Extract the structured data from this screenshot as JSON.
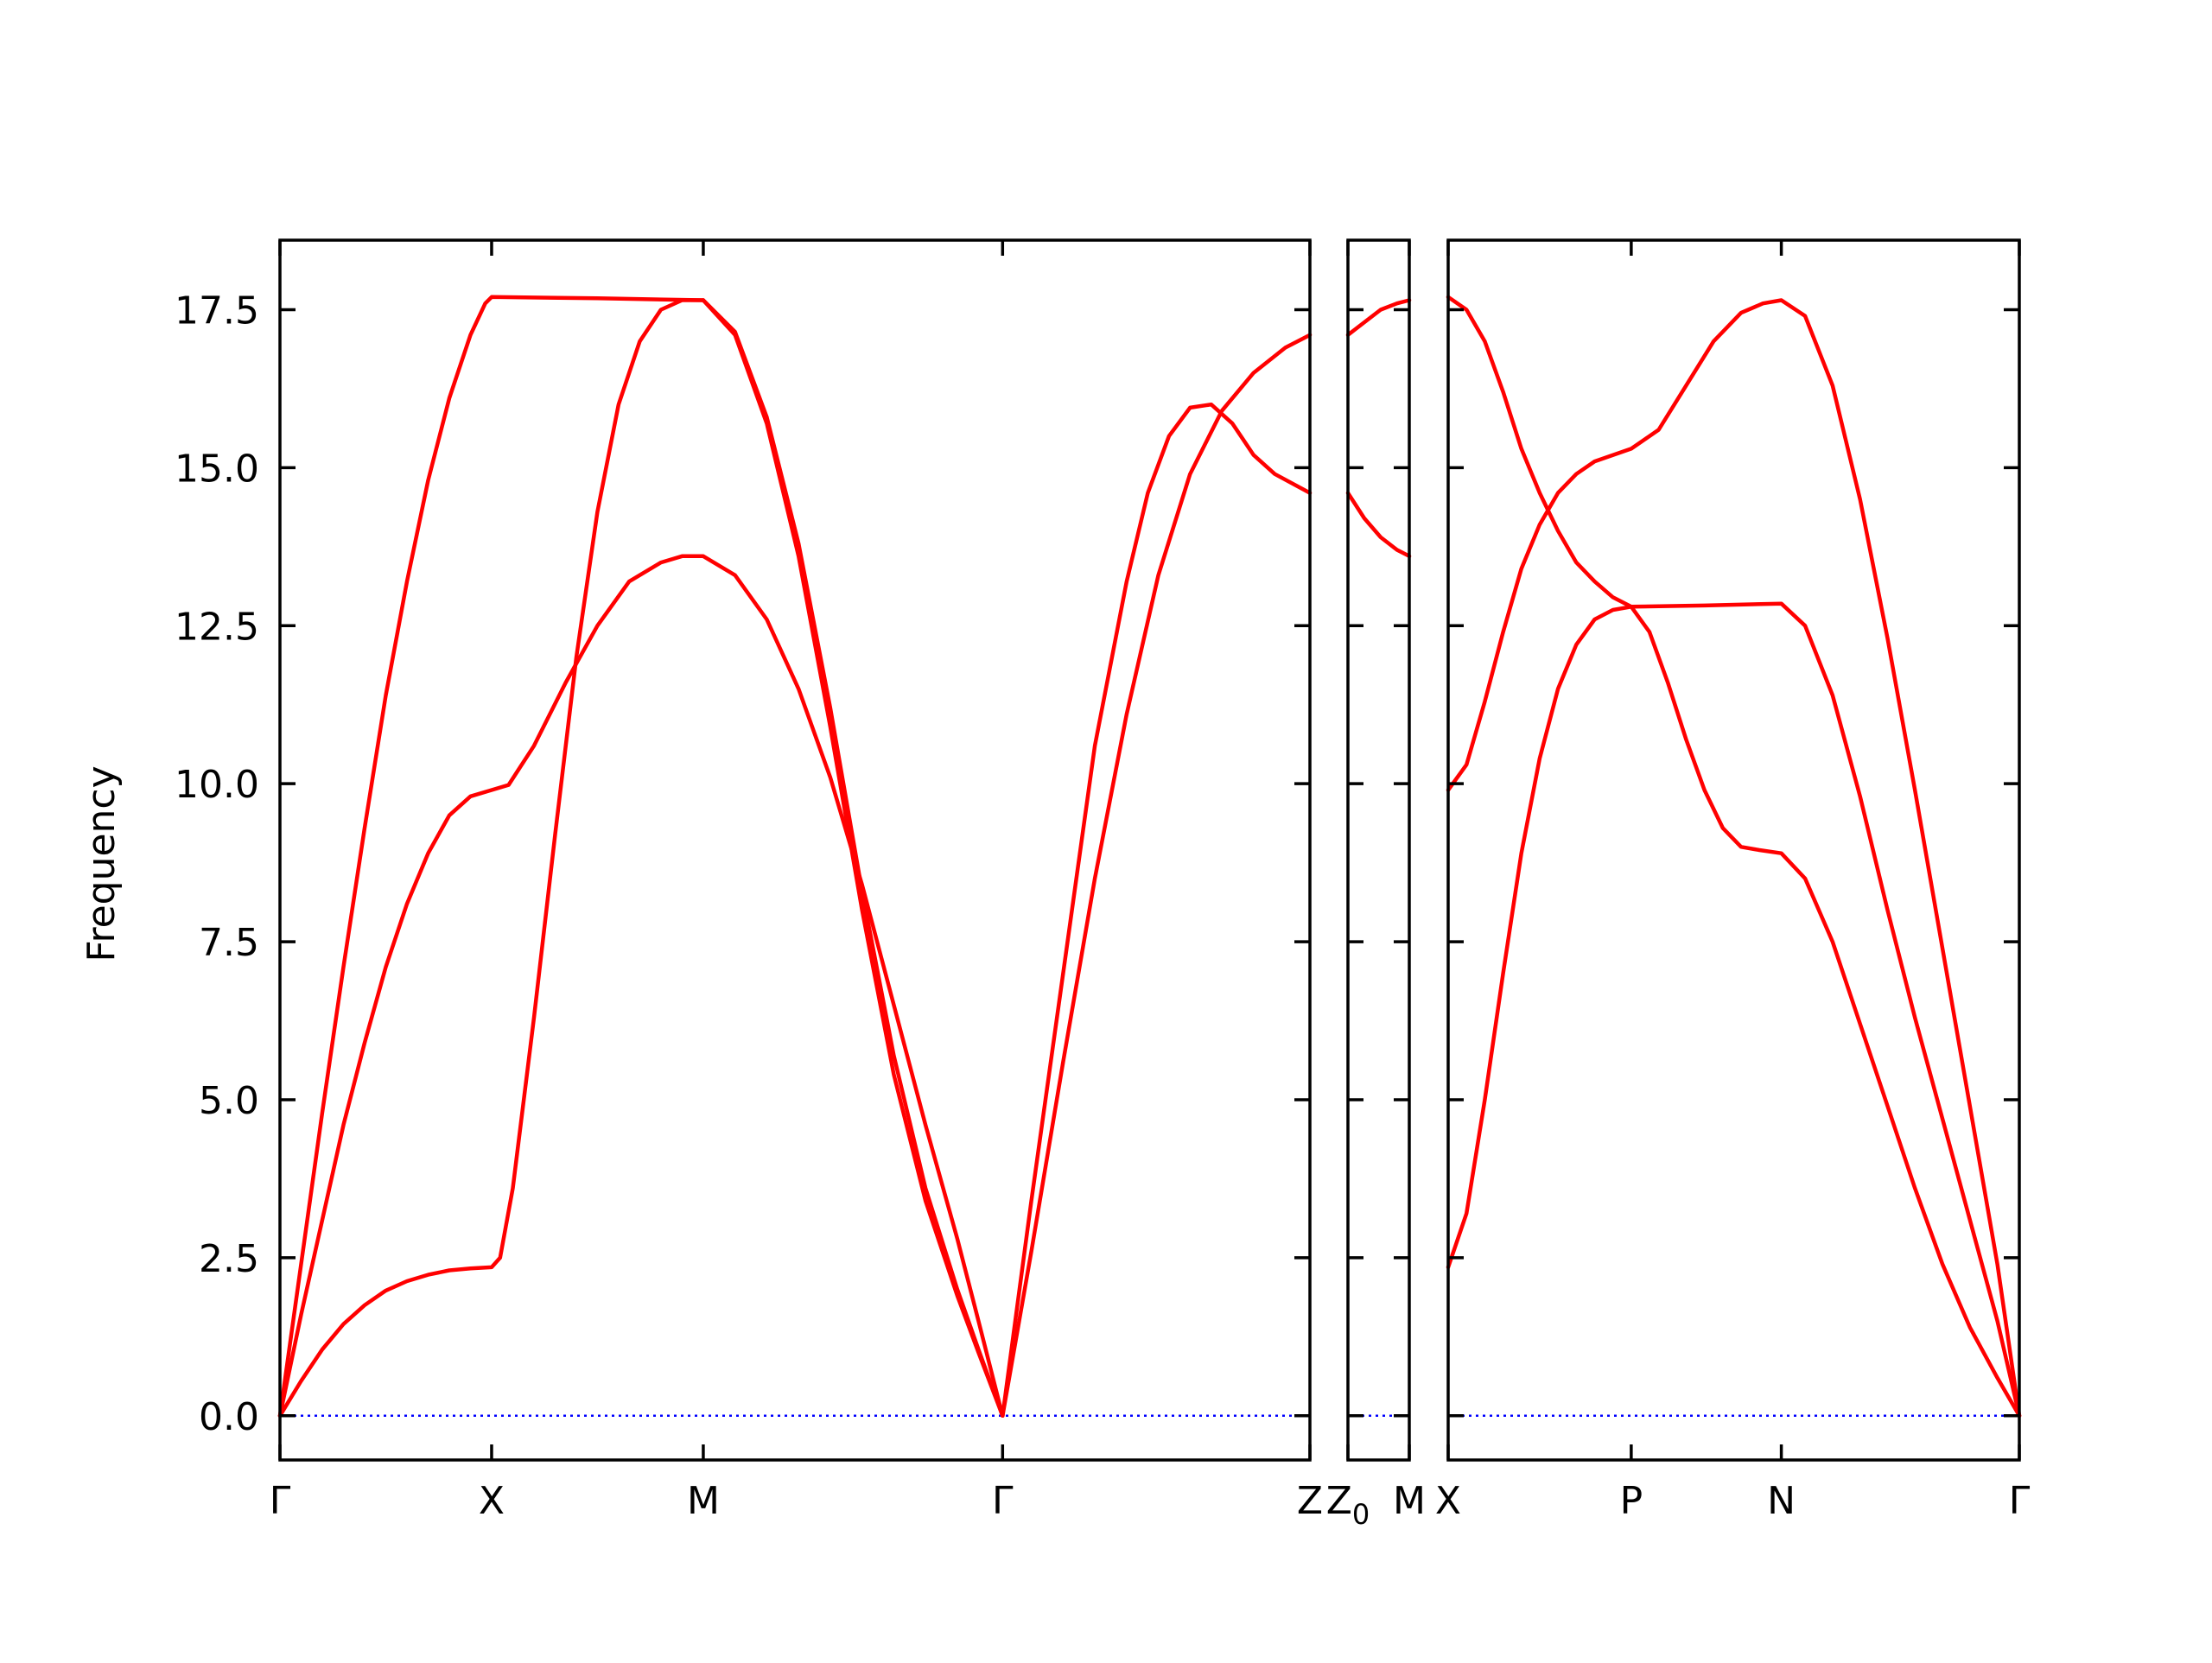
{
  "chart_data": {
    "type": "line",
    "ylabel": "Frequency",
    "ylim": [
      -0.7,
      18.6
    ],
    "yticks": [
      "0.0",
      "2.5",
      "5.0",
      "7.5",
      "10.0",
      "12.5",
      "15.0",
      "17.5"
    ],
    "line_color": "#ff0000",
    "zero_line_color": "#0000ff",
    "panels": [
      {
        "name": "panel-1",
        "xticks": [
          {
            "label": "Γ",
            "x": 0
          },
          {
            "label": "X",
            "x": 1
          },
          {
            "label": "M",
            "x": 2
          },
          {
            "label": "Γ",
            "x": 3.414
          },
          {
            "label": "Z",
            "x": 4.866
          }
        ],
        "xlim": [
          0,
          4.866
        ],
        "series": [
          {
            "values": [
              [
                0,
                0
              ],
              [
                0.1,
                2.4
              ],
              [
                0.2,
                4.8
              ],
              [
                0.3,
                7.1
              ],
              [
                0.4,
                9.3
              ],
              [
                0.5,
                11.4
              ],
              [
                0.6,
                13.2
              ],
              [
                0.7,
                14.8
              ],
              [
                0.8,
                16.1
              ],
              [
                0.9,
                17.1
              ],
              [
                0.97,
                17.6
              ],
              [
                1,
                17.7
              ],
              [
                1.5,
                17.68
              ],
              [
                2,
                17.65
              ]
            ]
          },
          {
            "values": [
              [
                0,
                0
              ],
              [
                0.1,
                1.6
              ],
              [
                0.2,
                3.1
              ],
              [
                0.3,
                4.6
              ],
              [
                0.4,
                5.9
              ],
              [
                0.5,
                7.1
              ],
              [
                0.6,
                8.1
              ],
              [
                0.7,
                8.9
              ],
              [
                0.8,
                9.5
              ],
              [
                0.9,
                9.8
              ],
              [
                1,
                9.9
              ],
              [
                1.08,
                9.98
              ],
              [
                1.2,
                10.6
              ],
              [
                1.35,
                11.6
              ],
              [
                1.5,
                12.5
              ],
              [
                1.65,
                13.2
              ],
              [
                1.8,
                13.5
              ],
              [
                1.9,
                13.6
              ],
              [
                2,
                13.6
              ],
              [
                2.15,
                13.3
              ],
              [
                2.3,
                12.6
              ],
              [
                2.45,
                11.5
              ],
              [
                2.6,
                10.1
              ],
              [
                2.75,
                8.4
              ],
              [
                2.9,
                6.5
              ],
              [
                3.05,
                4.6
              ],
              [
                3.2,
                2.8
              ],
              [
                3.3,
                1.5
              ],
              [
                3.414,
                0
              ]
            ]
          },
          {
            "values": [
              [
                0,
                0
              ],
              [
                0.1,
                0.55
              ],
              [
                0.2,
                1.05
              ],
              [
                0.3,
                1.45
              ],
              [
                0.4,
                1.75
              ],
              [
                0.5,
                1.98
              ],
              [
                0.6,
                2.13
              ],
              [
                0.7,
                2.23
              ],
              [
                0.8,
                2.3
              ],
              [
                0.9,
                2.33
              ],
              [
                1,
                2.35
              ],
              [
                1.04,
                2.5
              ],
              [
                1.1,
                3.6
              ],
              [
                1.2,
                6.3
              ],
              [
                1.3,
                9.2
              ],
              [
                1.4,
                12.0
              ],
              [
                1.5,
                14.3
              ],
              [
                1.6,
                16.0
              ],
              [
                1.7,
                17.0
              ],
              [
                1.8,
                17.5
              ],
              [
                1.9,
                17.65
              ],
              [
                2,
                17.65
              ],
              [
                2.15,
                17.1
              ],
              [
                2.3,
                15.7
              ],
              [
                2.45,
                13.6
              ],
              [
                2.6,
                10.9
              ],
              [
                2.75,
                8.0
              ],
              [
                2.9,
                5.4
              ],
              [
                3.05,
                3.4
              ],
              [
                3.2,
                1.9
              ],
              [
                3.3,
                1.0
              ],
              [
                3.414,
                0
              ]
            ]
          },
          {
            "values": [
              [
                2,
                17.65
              ],
              [
                2.15,
                17.15
              ],
              [
                2.3,
                15.8
              ],
              [
                2.45,
                13.8
              ],
              [
                2.6,
                11.2
              ],
              [
                2.75,
                8.3
              ],
              [
                2.9,
                5.7
              ],
              [
                3.05,
                3.6
              ],
              [
                3.2,
                2.0
              ],
              [
                3.3,
                1.05
              ],
              [
                3.414,
                0
              ]
            ]
          },
          {
            "values": [
              [
                3.414,
                0
              ],
              [
                3.55,
                3.4
              ],
              [
                3.7,
                7.0
              ],
              [
                3.85,
                10.6
              ],
              [
                4.0,
                13.2
              ],
              [
                4.1,
                14.6
              ],
              [
                4.2,
                15.5
              ],
              [
                4.3,
                15.95
              ],
              [
                4.4,
                16.0
              ],
              [
                4.5,
                15.7
              ],
              [
                4.6,
                15.2
              ],
              [
                4.7,
                14.9
              ],
              [
                4.866,
                14.6
              ]
            ]
          },
          {
            "values": [
              [
                3.414,
                0
              ],
              [
                3.55,
                2.6
              ],
              [
                3.7,
                5.6
              ],
              [
                3.85,
                8.5
              ],
              [
                4.0,
                11.1
              ],
              [
                4.15,
                13.3
              ],
              [
                4.3,
                14.9
              ],
              [
                4.45,
                15.9
              ],
              [
                4.6,
                16.5
              ],
              [
                4.75,
                16.9
              ],
              [
                4.866,
                17.1
              ]
            ]
          }
        ]
      },
      {
        "name": "panel-2",
        "xticks": [
          {
            "label": "Z",
            "sub": "0",
            "x": 0
          },
          {
            "label": "M",
            "x": 0.3
          }
        ],
        "xlim": [
          0,
          0.3
        ],
        "series": [
          {
            "values": [
              [
                0,
                14.6
              ],
              [
                0.08,
                14.2
              ],
              [
                0.16,
                13.9
              ],
              [
                0.24,
                13.7
              ],
              [
                0.3,
                13.6
              ]
            ]
          },
          {
            "values": [
              [
                0,
                17.1
              ],
              [
                0.08,
                17.3
              ],
              [
                0.16,
                17.5
              ],
              [
                0.24,
                17.6
              ],
              [
                0.3,
                17.65
              ]
            ]
          }
        ]
      },
      {
        "name": "panel-3",
        "xticks": [
          {
            "label": "X",
            "x": 0
          },
          {
            "label": "P",
            "x": 1
          },
          {
            "label": "N",
            "x": 1.82
          },
          {
            "label": "Γ",
            "x": 3.12
          }
        ],
        "xlim": [
          0,
          3.12
        ],
        "series": [
          {
            "values": [
              [
                0,
                17.7
              ],
              [
                0.1,
                17.5
              ],
              [
                0.2,
                17.0
              ],
              [
                0.3,
                16.2
              ],
              [
                0.4,
                15.3
              ],
              [
                0.5,
                14.6
              ],
              [
                0.6,
                14.0
              ],
              [
                0.7,
                13.5
              ],
              [
                0.8,
                13.2
              ],
              [
                0.9,
                12.95
              ],
              [
                1,
                12.8
              ],
              [
                1.4,
                12.82
              ],
              [
                1.82,
                12.85
              ],
              [
                1.95,
                12.5
              ],
              [
                2.1,
                11.4
              ],
              [
                2.25,
                9.8
              ],
              [
                2.4,
                8.0
              ],
              [
                2.55,
                6.3
              ],
              [
                2.7,
                4.7
              ],
              [
                2.85,
                3.1
              ],
              [
                3.0,
                1.5
              ],
              [
                3.12,
                0
              ]
            ]
          },
          {
            "values": [
              [
                0,
                9.9
              ],
              [
                0.1,
                10.3
              ],
              [
                0.2,
                11.3
              ],
              [
                0.3,
                12.4
              ],
              [
                0.4,
                13.4
              ],
              [
                0.5,
                14.1
              ],
              [
                0.6,
                14.6
              ],
              [
                0.7,
                14.9
              ],
              [
                0.8,
                15.1
              ],
              [
                0.9,
                15.2
              ],
              [
                1,
                15.3
              ],
              [
                1.15,
                15.6
              ],
              [
                1.3,
                16.3
              ],
              [
                1.45,
                17.0
              ],
              [
                1.6,
                17.45
              ],
              [
                1.72,
                17.6
              ],
              [
                1.82,
                17.65
              ],
              [
                1.95,
                17.4
              ],
              [
                2.1,
                16.3
              ],
              [
                2.25,
                14.5
              ],
              [
                2.4,
                12.3
              ],
              [
                2.55,
                9.9
              ],
              [
                2.7,
                7.4
              ],
              [
                2.85,
                4.9
              ],
              [
                3.0,
                2.4
              ],
              [
                3.12,
                0
              ]
            ]
          },
          {
            "values": [
              [
                0,
                2.35
              ],
              [
                0.1,
                3.2
              ],
              [
                0.2,
                5.0
              ],
              [
                0.3,
                7.0
              ],
              [
                0.4,
                8.9
              ],
              [
                0.5,
                10.4
              ],
              [
                0.6,
                11.5
              ],
              [
                0.7,
                12.2
              ],
              [
                0.8,
                12.6
              ],
              [
                0.9,
                12.75
              ],
              [
                1,
                12.8
              ],
              [
                1.1,
                12.4
              ],
              [
                1.2,
                11.6
              ],
              [
                1.3,
                10.7
              ],
              [
                1.4,
                9.9
              ],
              [
                1.5,
                9.3
              ],
              [
                1.6,
                9.0
              ],
              [
                1.7,
                8.95
              ],
              [
                1.82,
                8.9
              ],
              [
                1.95,
                8.5
              ],
              [
                2.1,
                7.5
              ],
              [
                2.25,
                6.2
              ],
              [
                2.4,
                4.9
              ],
              [
                2.55,
                3.6
              ],
              [
                2.7,
                2.4
              ],
              [
                2.85,
                1.4
              ],
              [
                3.0,
                0.6
              ],
              [
                3.12,
                0
              ]
            ]
          }
        ]
      }
    ]
  }
}
